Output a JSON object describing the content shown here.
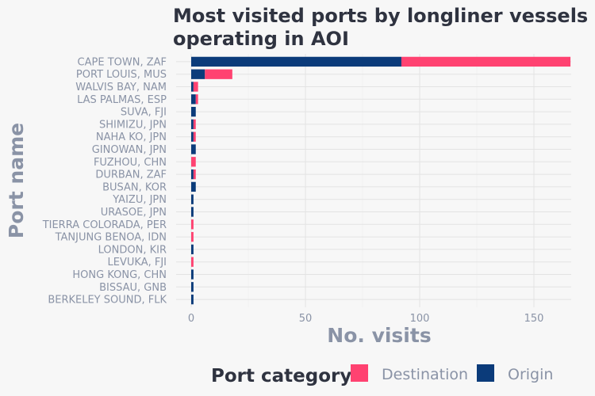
{
  "chart_data": {
    "type": "bar",
    "orientation": "horizontal",
    "stacked": true,
    "title": "Most visited ports by longliner vessels operating in AOI",
    "title_lines": [
      "Most visited ports by longliner vessels",
      "operating in AOI"
    ],
    "xlabel": "No. visits",
    "ylabel": "Port name",
    "xlim": [
      0,
      166
    ],
    "xticks": [
      0,
      50,
      100,
      150
    ],
    "grid": true,
    "legend": {
      "title": "Port category",
      "position": "bottom"
    },
    "categories": [
      "CAPE TOWN, ZAF",
      "PORT LOUIS, MUS",
      "WALVIS BAY, NAM",
      "LAS PALMAS, ESP",
      "SUVA, FJI",
      "SHIMIZU, JPN",
      "NAHA KO, JPN",
      "GINOWAN, JPN",
      "FUZHOU, CHN",
      "DURBAN, ZAF",
      "BUSAN, KOR",
      "YAIZU, JPN",
      "URASOE, JPN",
      "TIERRA COLORADA, PER",
      "TANJUNG BENOA, IDN",
      "LONDON, KIR",
      "LEVUKA, FJI",
      "HONG KONG, CHN",
      "BISSAU, GNB",
      "BERKELEY SOUND, FLK"
    ],
    "series": [
      {
        "name": "Origin",
        "color": "#0b3b7a",
        "values": [
          92,
          6,
          1,
          2,
          2,
          1,
          1,
          2,
          0,
          1,
          2,
          1,
          1,
          0,
          0,
          1,
          0,
          1,
          1,
          1
        ]
      },
      {
        "name": "Destination",
        "color": "#ff4271",
        "values": [
          74,
          12,
          2,
          1,
          0,
          1,
          1,
          0,
          2,
          1,
          0,
          0,
          0,
          1,
          1,
          0,
          1,
          0,
          0,
          0
        ]
      }
    ],
    "legend_order": [
      "Destination",
      "Origin"
    ]
  }
}
